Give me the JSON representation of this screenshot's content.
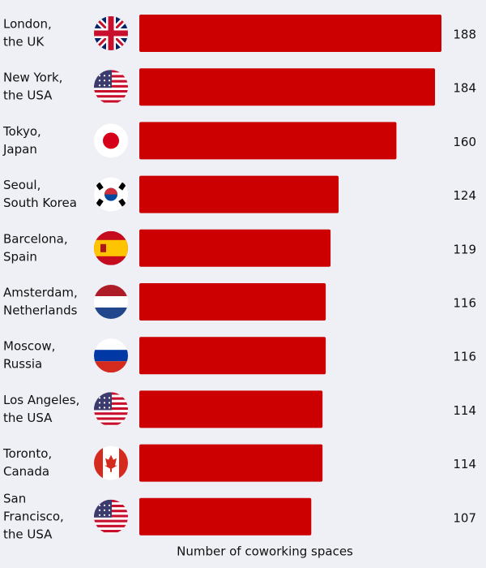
{
  "chart_data": {
    "type": "bar",
    "orientation": "horizontal",
    "color": "#cc0000",
    "categories": [
      [
        "London,",
        "the UK"
      ],
      [
        "New York,",
        "the USA"
      ],
      [
        "Tokyo,",
        "Japan"
      ],
      [
        "Seoul,",
        "South Korea"
      ],
      [
        "Barcelona,",
        "Spain"
      ],
      [
        "Amsterdam,",
        "Netherlands"
      ],
      [
        "Moscow,",
        "Russia"
      ],
      [
        "Los Angeles,",
        "the USA"
      ],
      [
        "Toronto,",
        "Canada"
      ],
      [
        "San",
        "Francisco,",
        "the USA"
      ]
    ],
    "values": [
      188,
      184,
      160,
      124,
      119,
      116,
      116,
      114,
      114,
      107
    ],
    "x_label": "Number of coworking spaces"
  }
}
